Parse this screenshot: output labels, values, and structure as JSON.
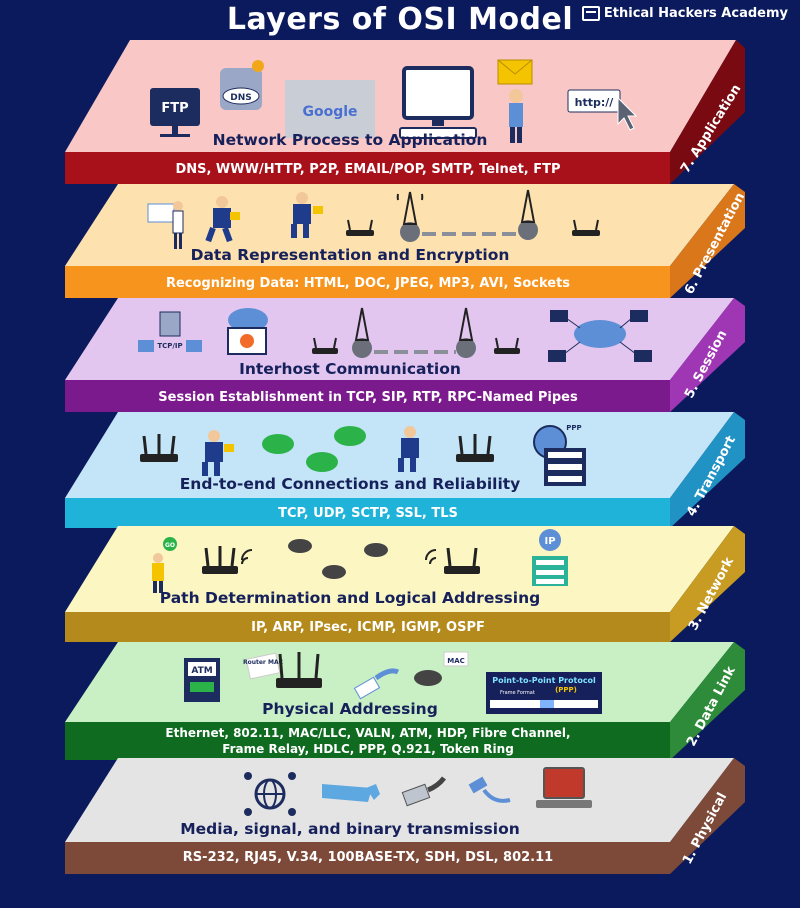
{
  "title": "Layers of OSI Model",
  "brand": "Ethical Hackers Academy",
  "layers": [
    {
      "label": "7. Application",
      "heading": "Network Process to Application",
      "protocols": "DNS, WWW/HTTP, P2P, EMAIL/POP, SMTP, Telnet, FTP",
      "colors": {
        "top": "#f9c7c5",
        "band": "#a8101a",
        "side": "#7a0a12"
      },
      "icon_text": {
        "ftp": "FTP",
        "dns": "DNS",
        "google": "Google",
        "url": "http://"
      }
    },
    {
      "label": "6. Presentation",
      "heading": "Data Representation and Encryption",
      "protocols": "Recognizing Data: HTML, DOC, JPEG, MP3, AVI, Sockets",
      "colors": {
        "top": "#fde2b0",
        "band": "#f7941d",
        "side": "#d9771a"
      }
    },
    {
      "label": "5. Session",
      "heading": "Interhost Communication",
      "protocols": "Session Establishment in TCP, SIP, RTP, RPC-Named Pipes",
      "colors": {
        "top": "#e2c6f0",
        "band": "#7b1a8c",
        "side": "#9f36b4"
      },
      "icon_text": {
        "tcpip": "TCP/IP"
      }
    },
    {
      "label": "4. Transport",
      "heading": "End-to-end Connections and Reliability",
      "protocols": "TCP, UDP, SCTP, SSL, TLS",
      "colors": {
        "top": "#c4e4f7",
        "band": "#1fb3d9",
        "side": "#2093c4"
      },
      "icon_text": {
        "ppp": "PPP"
      }
    },
    {
      "label": "3. Network",
      "heading": "Path Determination and Logical Addressing",
      "protocols": "IP, ARP, IPsec, ICMP, IGMP, OSPF",
      "colors": {
        "top": "#fbf6c2",
        "band": "#b58a1c",
        "side": "#c89b22"
      },
      "icon_text": {
        "ip": "IP",
        "go": "GO"
      }
    },
    {
      "label": "2. Data Link",
      "heading": "Physical Addressing",
      "protocols": "Ethernet, 802.11, MAC/LLC, VALN, ATM, HDP, Fibre Channel,",
      "protocols2": "Frame Relay, HDLC, PPP, Q.921, Token Ring",
      "colors": {
        "top": "#c9f0c4",
        "band": "#0f6b1f",
        "side": "#2e8b3a"
      },
      "icon_text": {
        "atm": "ATM",
        "router_mac": "Router MAC",
        "mac": "MAC",
        "ppp_title": "Point-to-Point Protocol",
        "ppp_sub": "(PPP)",
        "frame_format": "Frame Format"
      }
    },
    {
      "label": "1. Physical",
      "heading": "Media, signal, and binary transmission",
      "protocols": "RS-232, RJ45, V.34, 100BASE-TX, SDH, DSL, 802.11",
      "colors": {
        "top": "#e4e4e4",
        "band": "#7d4a3a",
        "side": "#7d4a3a"
      }
    }
  ]
}
